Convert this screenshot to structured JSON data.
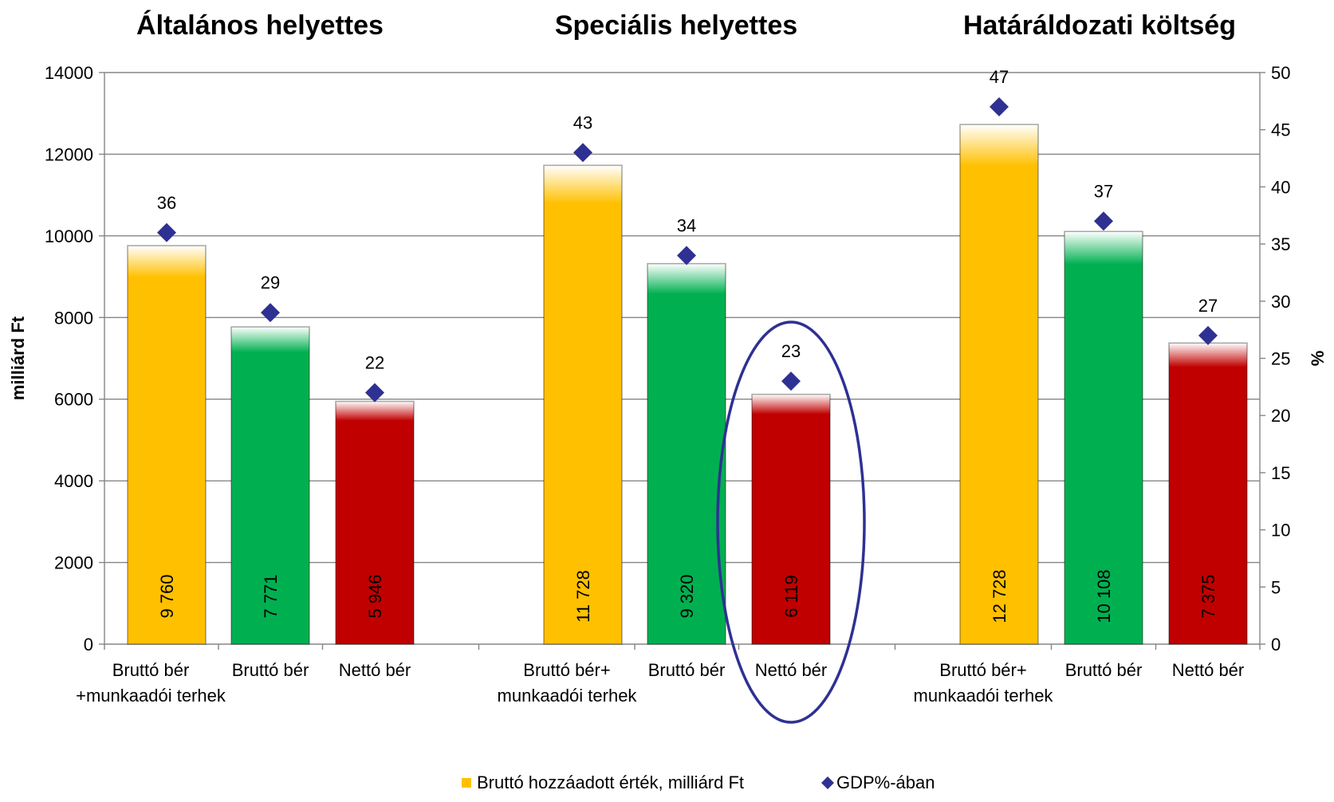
{
  "chart_data": {
    "type": "bar",
    "group_titles": [
      "Általános helyettes",
      "Speciális helyettes",
      "Határáldozati költség"
    ],
    "categories": [
      [
        "Bruttó bér",
        "+munkaadói terhek"
      ],
      [
        "Bruttó bér"
      ],
      [
        "Nettó bér"
      ],
      [
        "Bruttó bér+",
        "munkaadói terhek"
      ],
      [
        "Bruttó bér"
      ],
      [
        "Nettó bér"
      ],
      [
        "Bruttó bér+",
        "munkaadói terhek"
      ],
      [
        "Bruttó bér"
      ],
      [
        "Nettó bér"
      ]
    ],
    "series": [
      {
        "name": "Bruttó hozzáadott érték, milliárd Ft",
        "kind": "bar",
        "axis": "left",
        "values": [
          9760,
          7771,
          5946,
          11728,
          9320,
          6119,
          12728,
          10108,
          7375
        ],
        "value_labels": [
          "9 760",
          "7 771",
          "5 946",
          "11 728",
          "9 320",
          "6 119",
          "12 728",
          "10 108",
          "7 375"
        ],
        "bar_colors": [
          "#FFC000",
          "#00B050",
          "#C00000",
          "#FFC000",
          "#00B050",
          "#C00000",
          "#FFC000",
          "#00B050",
          "#C00000"
        ]
      },
      {
        "name": "GDP%-ában",
        "kind": "marker",
        "axis": "right",
        "values": [
          36,
          29,
          22,
          43,
          34,
          23,
          47,
          37,
          27
        ],
        "value_labels": [
          "36",
          "29",
          "22",
          "43",
          "34",
          "23",
          "47",
          "37",
          "27"
        ],
        "color": "#2E3192"
      }
    ],
    "ylabel": "milliárd Ft",
    "y2label": "%",
    "ylim": [
      0,
      14000
    ],
    "y2lim": [
      0,
      50
    ],
    "yticks": [
      "0",
      "2000",
      "4000",
      "6000",
      "8000",
      "10000",
      "12000",
      "14000"
    ],
    "y2ticks": [
      "0",
      "5",
      "10",
      "15",
      "20",
      "25",
      "30",
      "35",
      "40",
      "45",
      "50"
    ],
    "grid": true,
    "legend_position": "bottom",
    "highlight": {
      "shape": "ellipse",
      "category_index": 5,
      "color": "#2E3192"
    }
  }
}
